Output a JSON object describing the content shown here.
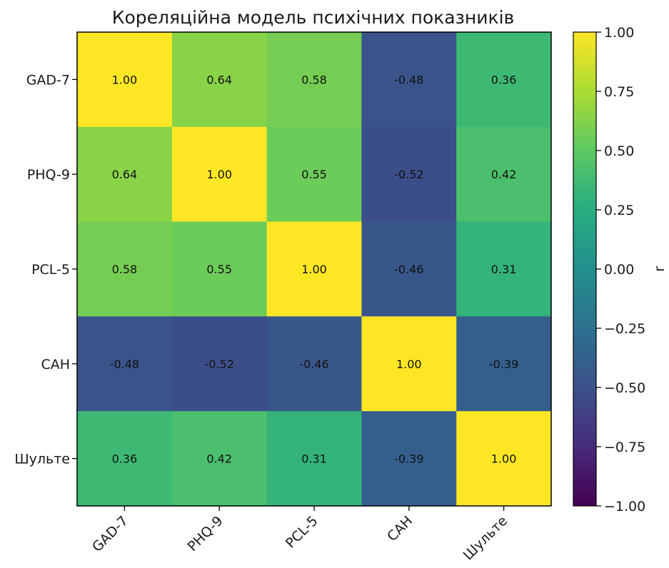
{
  "chart_data": {
    "type": "heatmap",
    "title": "Кореляційна модель психічних показників",
    "row_labels": [
      "GAD-7",
      "PHQ-9",
      "PCL-5",
      "САН",
      "Шульте"
    ],
    "col_labels": [
      "GAD-7",
      "PHQ-9",
      "PCL-5",
      "САН",
      "Шульте"
    ],
    "values": [
      [
        1.0,
        0.64,
        0.58,
        -0.48,
        0.36
      ],
      [
        0.64,
        1.0,
        0.55,
        -0.52,
        0.42
      ],
      [
        0.58,
        0.55,
        1.0,
        -0.46,
        0.31
      ],
      [
        -0.48,
        -0.52,
        -0.46,
        1.0,
        -0.39
      ],
      [
        0.36,
        0.42,
        0.31,
        -0.39,
        1.0
      ]
    ],
    "colormap": "viridis",
    "vmin": -1.0,
    "vmax": 1.0,
    "colorbar": {
      "label": "r",
      "ticks": [
        1.0,
        0.75,
        0.5,
        0.25,
        0.0,
        -0.25,
        -0.5,
        -0.75,
        -1.0
      ],
      "tick_labels": [
        "1.00",
        "0.75",
        "0.50",
        "0.25",
        "0.00",
        "−0.25",
        "−0.50",
        "−0.75",
        "−1.00"
      ]
    },
    "grid": false
  }
}
